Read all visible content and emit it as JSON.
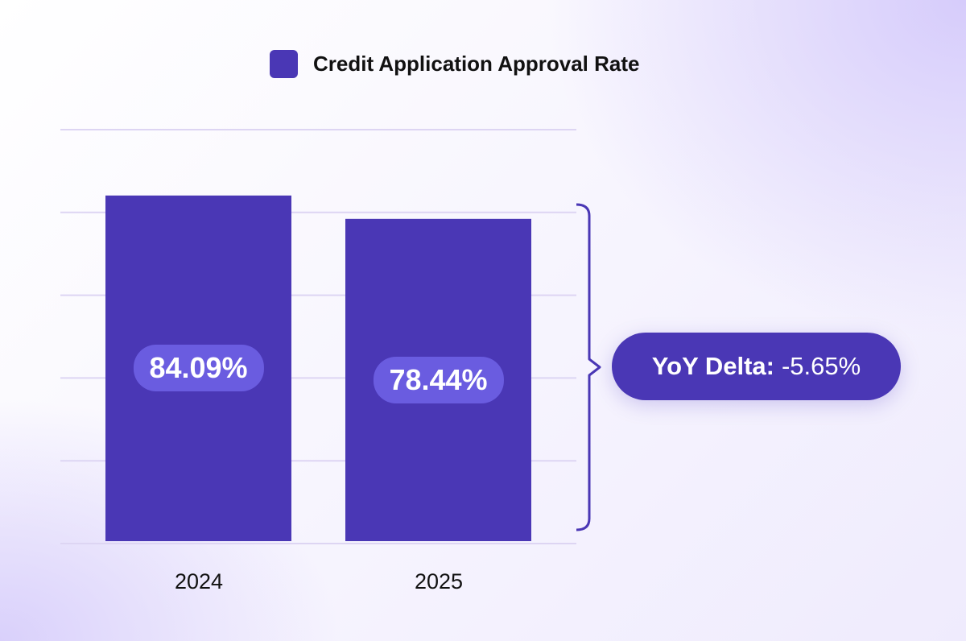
{
  "chart_data": {
    "type": "bar",
    "categories": [
      "2024",
      "2025"
    ],
    "series": [
      {
        "name": "Credit Application Approval Rate",
        "values": [
          84.09,
          78.44
        ]
      }
    ],
    "data_labels": [
      "84.09%",
      "78.44%"
    ],
    "ylim": [
      0,
      100
    ],
    "yticks": [
      0,
      20,
      40,
      60,
      80,
      100
    ],
    "grid": true,
    "legend_placement": "top-center",
    "annotation": {
      "label": "YoY Delta:",
      "value": "-5.65%"
    },
    "colors": {
      "bar": "#4a37b5",
      "data_label_bg": "#6a5ce0",
      "grid": "#ddd5f3",
      "annotation_bg": "#4a37b5"
    }
  }
}
